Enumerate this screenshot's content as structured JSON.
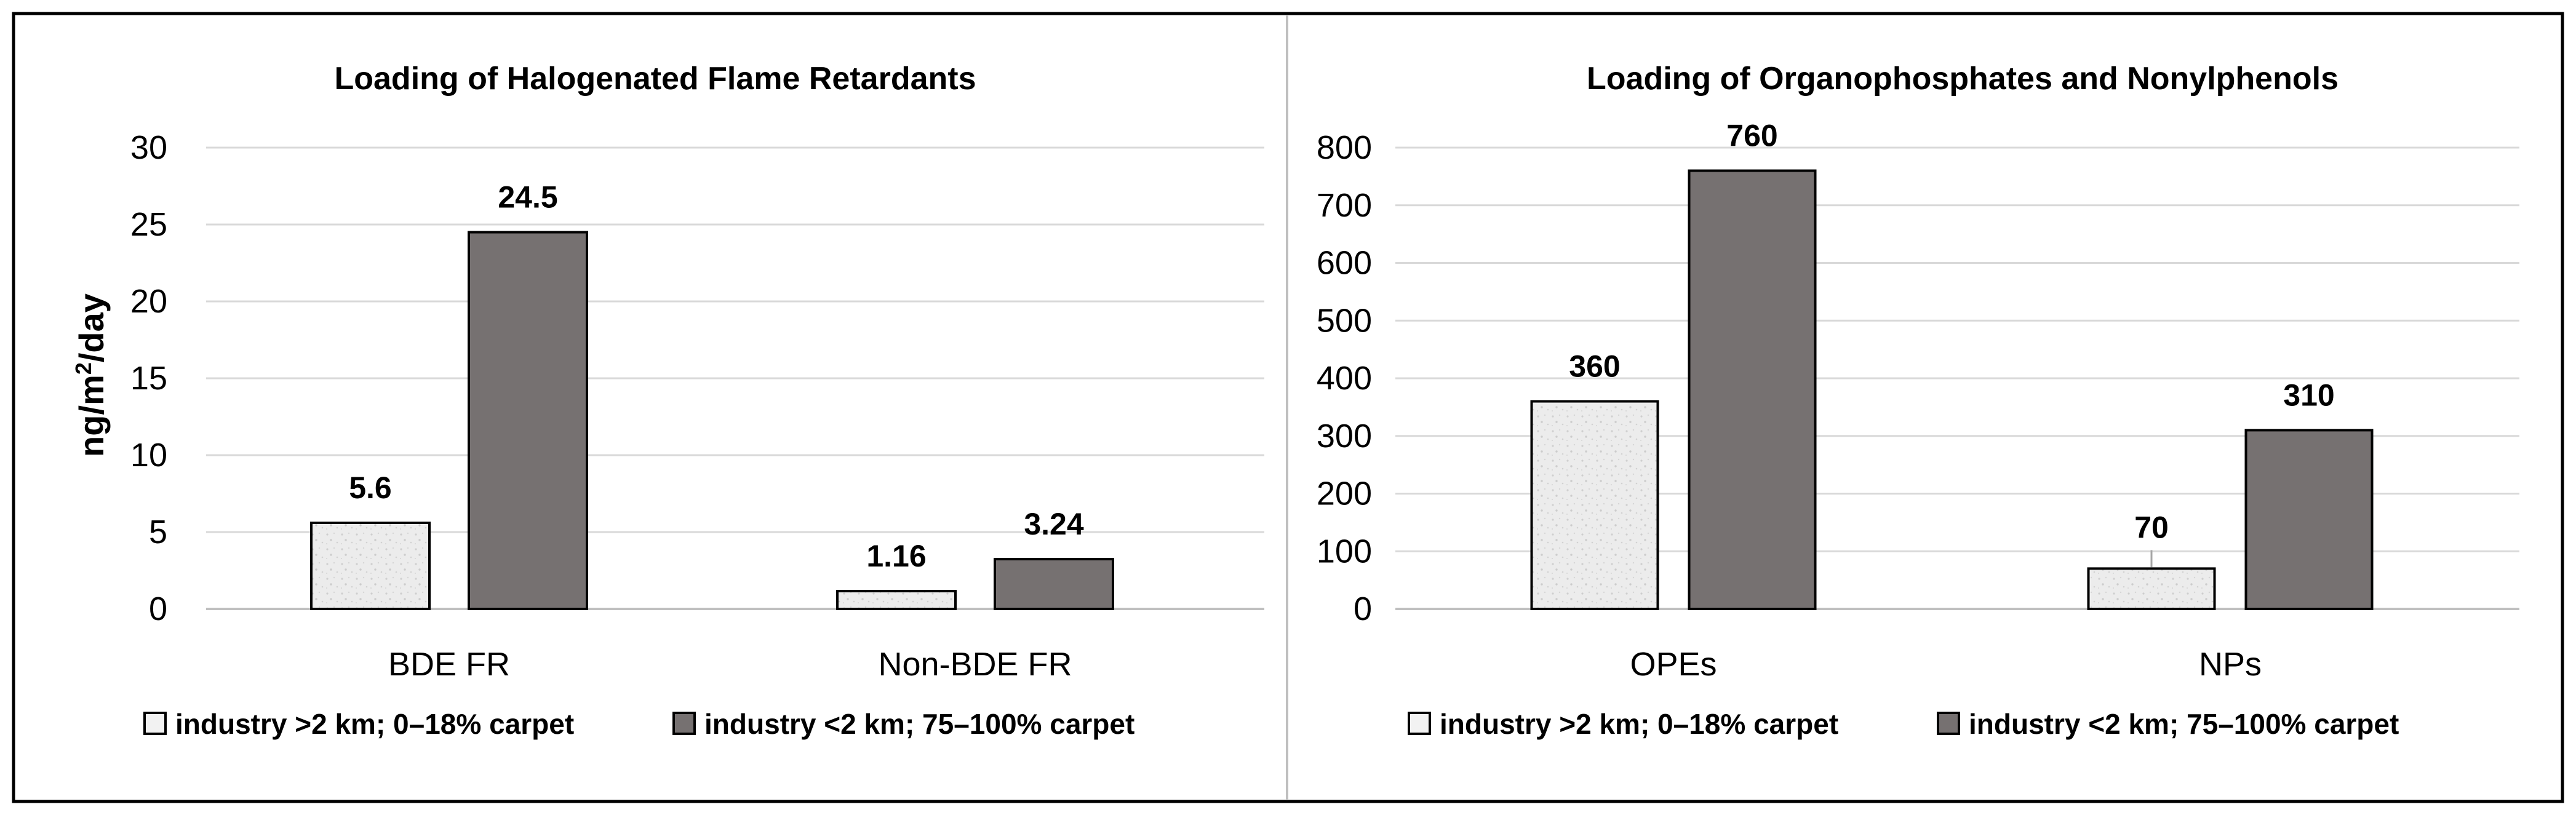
{
  "colors": {
    "light_series": "#ebebeb",
    "dark_series": "#767171",
    "frame": "#000000",
    "gridline": "#d9d9d9",
    "divider": "#bfbfbf",
    "text": "#000000"
  },
  "chart_data": [
    {
      "type": "bar",
      "title": "Loading of Halogenated Flame Retardants",
      "ylabel_main": "ng/m",
      "ylabel_sup": "2",
      "ylabel_tail": "/day",
      "xlabel": "",
      "ylim": [
        0,
        30
      ],
      "yticks": [
        0,
        5,
        10,
        15,
        20,
        25,
        30
      ],
      "grid": true,
      "legend_position": "bottom",
      "categories": [
        "BDE FR",
        "Non-BDE FR"
      ],
      "series": [
        {
          "name": "industry >2 km; 0–18% carpet",
          "values": [
            5.6,
            1.16
          ],
          "labels": [
            "5.6",
            "1.16"
          ],
          "color": "#ebebeb",
          "pattern": "light"
        },
        {
          "name": "industry <2 km; 75–100% carpet",
          "values": [
            24.5,
            3.24
          ],
          "labels": [
            "24.5",
            "3.24"
          ],
          "color": "#767171",
          "pattern": "dark"
        }
      ]
    },
    {
      "type": "bar",
      "title": "Loading of Organophosphates and Nonylphenols",
      "ylabel_main": "",
      "ylabel_sup": "",
      "ylabel_tail": "",
      "xlabel": "",
      "ylim": [
        0,
        800
      ],
      "yticks": [
        0,
        100,
        200,
        300,
        400,
        500,
        600,
        700,
        800
      ],
      "grid": true,
      "legend_position": "bottom",
      "categories": [
        "OPEs",
        "NPs"
      ],
      "series": [
        {
          "name": "industry >2 km; 0–18% carpet",
          "values": [
            360,
            70
          ],
          "labels": [
            "360",
            "70"
          ],
          "color": "#ebebeb",
          "pattern": "light"
        },
        {
          "name": "industry <2 km; 75–100% carpet",
          "values": [
            760,
            310
          ],
          "labels": [
            "760",
            "310"
          ],
          "color": "#767171",
          "pattern": "dark"
        }
      ]
    }
  ]
}
